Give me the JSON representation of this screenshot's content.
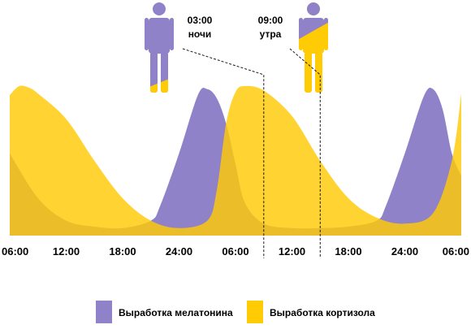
{
  "chart_data": {
    "type": "area",
    "x_ticks": [
      "06:00",
      "12:00",
      "18:00",
      "24:00",
      "06:00",
      "12:00",
      "18:00",
      "24:00",
      "06:00"
    ],
    "x_hours": [
      0,
      6,
      12,
      18,
      24,
      30,
      36,
      42,
      48
    ],
    "ylim": [
      0,
      1
    ],
    "grid": false,
    "legend_position": "bottom",
    "series": [
      {
        "name": "Выработка мелатонина",
        "color": "#8f82c9",
        "x": [
          0,
          3,
          6,
          9,
          12,
          15,
          16,
          18,
          20,
          21,
          22,
          23,
          24,
          25,
          27,
          30,
          33,
          36,
          39,
          40,
          42,
          44,
          45,
          46,
          47,
          48
        ],
        "values": [
          0.55,
          0.25,
          0.1,
          0.06,
          0.05,
          0.1,
          0.2,
          0.55,
          0.94,
          0.98,
          0.92,
          0.75,
          0.48,
          0.22,
          0.08,
          0.05,
          0.05,
          0.06,
          0.1,
          0.2,
          0.55,
          0.93,
          0.98,
          0.85,
          0.55,
          0.4
        ]
      },
      {
        "name": "Выработка кортизола",
        "color": "#ffcb05",
        "x": [
          0,
          1,
          2,
          3,
          6,
          9,
          12,
          15,
          18,
          21,
          22,
          23,
          24,
          25,
          27,
          30,
          33,
          36,
          39,
          42,
          45,
          47,
          48
        ],
        "values": [
          0.94,
          1.0,
          0.99,
          0.95,
          0.78,
          0.5,
          0.25,
          0.1,
          0.05,
          0.1,
          0.3,
          0.75,
          0.96,
          1.0,
          0.97,
          0.8,
          0.5,
          0.25,
          0.12,
          0.08,
          0.15,
          0.5,
          0.95
        ]
      }
    ],
    "annotations": [
      {
        "hour": 27,
        "time": "03:00",
        "label": "ночи"
      },
      {
        "hour": 33,
        "time": "09:00",
        "label": "утра"
      }
    ]
  }
}
